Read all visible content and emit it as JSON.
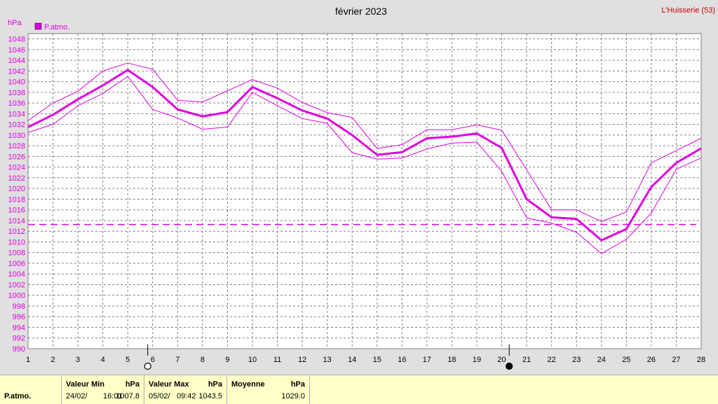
{
  "chart_data": {
    "type": "line",
    "title": "février 2023",
    "location": "L'Huisserie (53)",
    "ylabel": "hPa",
    "legend": "P.atmo.",
    "xlim": [
      1,
      28
    ],
    "ylim": [
      990,
      1049
    ],
    "yticks": [
      990,
      992,
      994,
      996,
      998,
      1000,
      1002,
      1004,
      1006,
      1008,
      1010,
      1012,
      1014,
      1016,
      1018,
      1020,
      1022,
      1024,
      1026,
      1028,
      1030,
      1032,
      1034,
      1036,
      1038,
      1040,
      1042,
      1044,
      1046,
      1048
    ],
    "x": [
      1,
      2,
      3,
      4,
      5,
      6,
      7,
      8,
      9,
      10,
      11,
      12,
      13,
      14,
      15,
      16,
      17,
      18,
      19,
      20,
      21,
      22,
      23,
      24,
      25,
      26,
      27,
      28
    ],
    "series": [
      {
        "name": "P.atmo.",
        "role": "mean",
        "values": [
          1031.5,
          1033.8,
          1036.7,
          1039.3,
          1042.2,
          1039.0,
          1034.8,
          1033.5,
          1034.3,
          1039.0,
          1036.9,
          1034.6,
          1033.1,
          1030.0,
          1026.3,
          1026.8,
          1029.4,
          1029.7,
          1030.3,
          1027.6,
          1018.0,
          1014.6,
          1014.3,
          1010.3,
          1012.4,
          1020.3,
          1024.8,
          1027.5
        ]
      },
      {
        "role": "max",
        "values": [
          1032.7,
          1036.0,
          1038.2,
          1042.0,
          1043.5,
          1042.3,
          1036.5,
          1036.2,
          1038.3,
          1040.4,
          1038.8,
          1036.1,
          1034.2,
          1033.3,
          1027.5,
          1028.2,
          1031.0,
          1031.0,
          1031.9,
          1030.9,
          1023.5,
          1016.0,
          1016.0,
          1013.8,
          1015.6,
          1024.8,
          1027.1,
          1029.4
        ]
      },
      {
        "role": "min",
        "values": [
          1030.5,
          1032.0,
          1035.5,
          1037.8,
          1041.0,
          1034.8,
          1033.2,
          1031.1,
          1031.5,
          1038.0,
          1035.5,
          1033.1,
          1032.2,
          1026.7,
          1025.5,
          1025.7,
          1027.4,
          1028.5,
          1028.7,
          1023.2,
          1014.5,
          1013.5,
          1011.8,
          1007.8,
          1010.5,
          1015.4,
          1023.6,
          1025.7
        ]
      }
    ],
    "reference_line": 1013.25,
    "moon_phases": [
      {
        "day": 5.8,
        "phase": "full"
      },
      {
        "day": 20.3,
        "phase": "new"
      }
    ],
    "colors": {
      "line": "#e000e0",
      "grid": "#808080",
      "plot_bg": "#ffffff",
      "page_bg": "#e0e0e0",
      "location": "#cc0000"
    }
  },
  "footer": {
    "name": "P.atmo.",
    "min_label": "Valeur Min",
    "min_unit": "hPa",
    "min_date": "24/02/",
    "min_time": "16:01",
    "min_value": "1007.8",
    "max_label": "Valeur Max",
    "max_unit": "hPa",
    "max_date": "05/02/",
    "max_time": "09:42",
    "max_value": "1043.5",
    "mean_label": "Moyenne",
    "mean_unit": "hPa",
    "mean_value": "1029.0"
  }
}
